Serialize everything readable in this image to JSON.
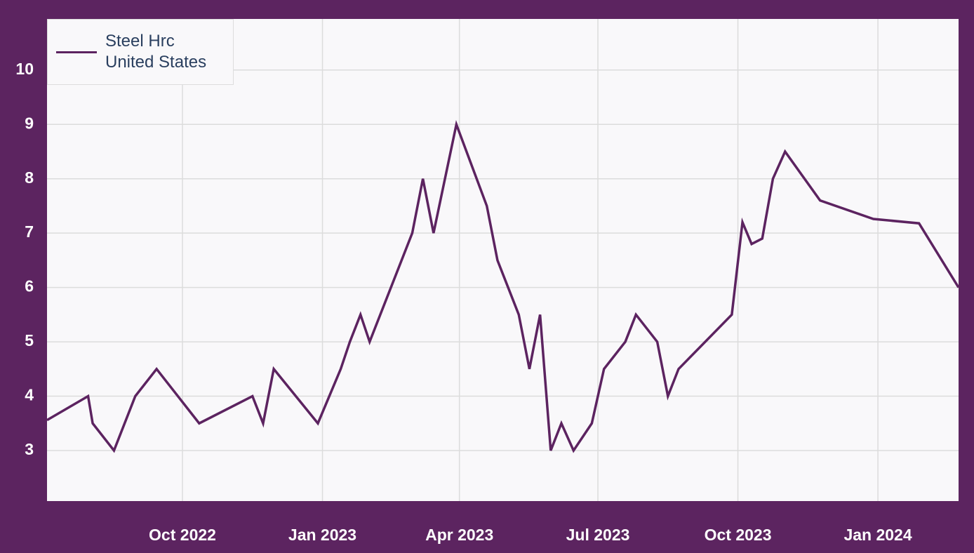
{
  "chart_data": {
    "type": "line",
    "x": [
      "2022-07-04",
      "2022-07-31",
      "2022-08-03",
      "2022-08-17",
      "2022-08-31",
      "2022-09-14",
      "2022-10-12",
      "2022-11-16",
      "2022-11-23",
      "2022-11-30",
      "2022-12-29",
      "2023-01-13",
      "2023-01-19",
      "2023-01-26",
      "2023-02-01",
      "2023-03-01",
      "2023-03-08",
      "2023-03-15",
      "2023-03-30",
      "2023-04-19",
      "2023-04-26",
      "2023-05-10",
      "2023-05-17",
      "2023-05-24",
      "2023-05-31",
      "2023-06-07",
      "2023-06-15",
      "2023-06-27",
      "2023-07-05",
      "2023-07-19",
      "2023-07-26",
      "2023-08-09",
      "2023-08-16",
      "2023-08-23",
      "2023-09-27",
      "2023-10-04",
      "2023-10-10",
      "2023-10-17",
      "2023-10-24",
      "2023-11-01",
      "2023-11-24",
      "2023-12-29",
      "2024-01-28",
      "2024-02-23"
    ],
    "series": [
      {
        "name": "Steel Hrc United States",
        "color": "#5c2360",
        "values": [
          3.56,
          4,
          3.5,
          3,
          4,
          4.5,
          3.5,
          4,
          3.5,
          4.5,
          3.5,
          4.5,
          5,
          5.5,
          5,
          7,
          8,
          7,
          9,
          7.5,
          6.5,
          5.5,
          4.5,
          5.5,
          3,
          3.5,
          3,
          3.5,
          4.5,
          5,
          5.5,
          5,
          4,
          4.5,
          5.5,
          7.2,
          6.8,
          6.9,
          8,
          8.5,
          7.6,
          7.26,
          7.18,
          6
        ]
      }
    ],
    "xlim": [
      "2022-07-04",
      "2024-02-23"
    ],
    "xticks": [
      {
        "value": "2022-10-01",
        "label": "Oct 2022"
      },
      {
        "value": "2023-01-01",
        "label": "Jan 2023"
      },
      {
        "value": "2023-04-01",
        "label": "Apr 2023"
      },
      {
        "value": "2023-07-01",
        "label": "Jul 2023"
      },
      {
        "value": "2023-10-01",
        "label": "Oct 2023"
      },
      {
        "value": "2024-01-01",
        "label": "Jan 2024"
      }
    ],
    "ylim": [
      2.07,
      10.94
    ],
    "yticks": [
      3,
      4,
      5,
      6,
      7,
      8,
      9,
      10
    ],
    "grid": true,
    "legend": "top-left"
  }
}
